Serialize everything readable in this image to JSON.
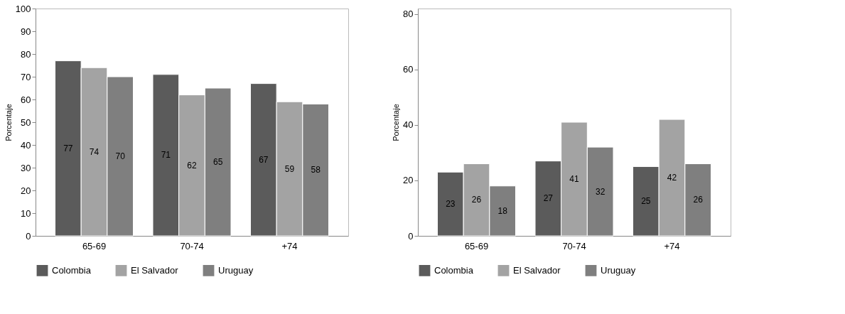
{
  "chart_data": [
    {
      "type": "bar",
      "ylabel": "Porcentaje",
      "categories": [
        "65-69",
        "70-74",
        "+74"
      ],
      "series": [
        {
          "name": "Colombia",
          "color": "#5b5b5b",
          "values": [
            77,
            71,
            67
          ]
        },
        {
          "name": "El Salvador",
          "color": "#a3a3a3",
          "values": [
            74,
            62,
            59
          ]
        },
        {
          "name": "Uruguay",
          "color": "#7f7f7f",
          "values": [
            70,
            65,
            58
          ]
        }
      ],
      "ylim": [
        0,
        100
      ],
      "yticks": [
        0,
        10,
        20,
        30,
        40,
        50,
        60,
        70,
        80,
        90,
        100
      ],
      "data_labels": true,
      "legend": "bottom",
      "grid": false
    },
    {
      "type": "bar",
      "ylabel": "Porcentaje",
      "categories": [
        "65-69",
        "70-74",
        "+74"
      ],
      "series": [
        {
          "name": "Colombia",
          "color": "#5b5b5b",
          "values": [
            23,
            27,
            25
          ]
        },
        {
          "name": "El Salvador",
          "color": "#a3a3a3",
          "values": [
            26,
            41,
            42
          ]
        },
        {
          "name": "Uruguay",
          "color": "#7f7f7f",
          "values": [
            18,
            32,
            26
          ]
        }
      ],
      "ylim": [
        0,
        82
      ],
      "yticks": [
        0,
        20,
        40,
        60,
        80
      ],
      "data_labels": true,
      "legend": "bottom",
      "grid": false
    }
  ]
}
